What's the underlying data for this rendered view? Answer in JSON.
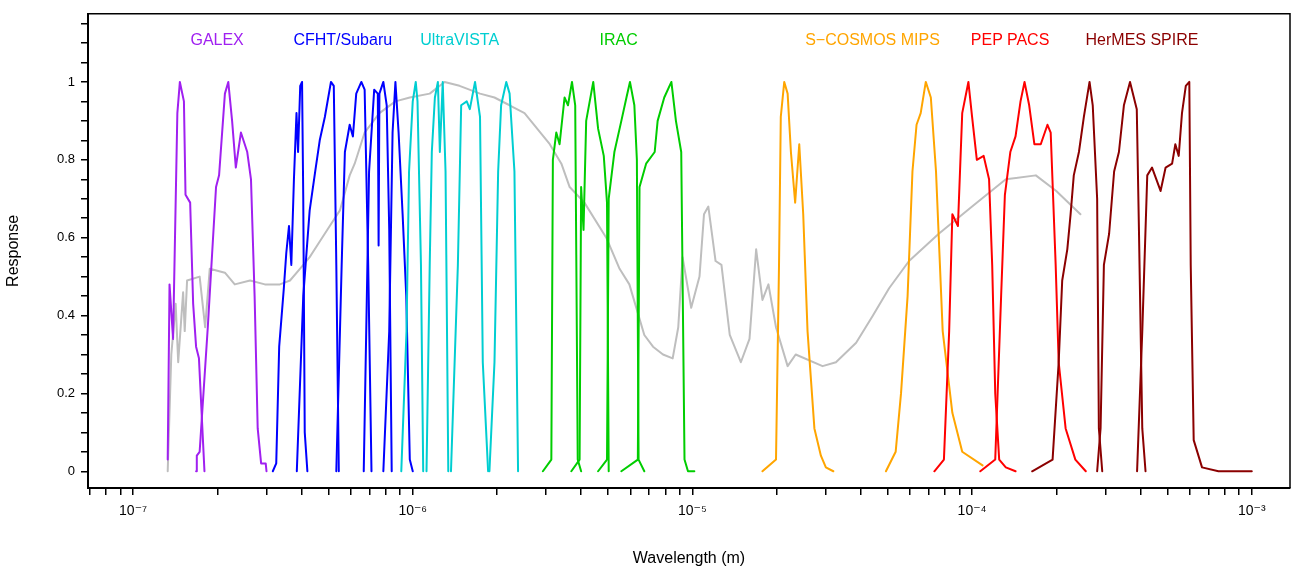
{
  "chart_data": {
    "type": "line",
    "xlabel": "Wavelength (m)",
    "ylabel": "Response",
    "log": "x",
    "grid": false,
    "xlim": [
      6.9e-08,
      0.00137
    ],
    "ylim": [
      -0.043,
      1.175
    ],
    "xticks": [
      {
        "value": 7e-08,
        "label": null
      },
      {
        "value": 8e-08,
        "label": null
      },
      {
        "value": 9e-08,
        "label": null
      },
      {
        "value": 1e-07,
        "label": "10⁻⁷"
      },
      {
        "value": 2e-07,
        "label": null
      },
      {
        "value": 3e-07,
        "label": null
      },
      {
        "value": 4e-07,
        "label": null
      },
      {
        "value": 5e-07,
        "label": null
      },
      {
        "value": 6e-07,
        "label": null
      },
      {
        "value": 7e-07,
        "label": null
      },
      {
        "value": 8e-07,
        "label": null
      },
      {
        "value": 9e-07,
        "label": null
      },
      {
        "value": 1e-06,
        "label": "10⁻⁶"
      },
      {
        "value": 2e-06,
        "label": null
      },
      {
        "value": 3e-06,
        "label": null
      },
      {
        "value": 4e-06,
        "label": null
      },
      {
        "value": 5e-06,
        "label": null
      },
      {
        "value": 6e-06,
        "label": null
      },
      {
        "value": 7e-06,
        "label": null
      },
      {
        "value": 8e-06,
        "label": null
      },
      {
        "value": 9e-06,
        "label": null
      },
      {
        "value": 1e-05,
        "label": "10⁻⁵"
      },
      {
        "value": 2e-05,
        "label": null
      },
      {
        "value": 3e-05,
        "label": null
      },
      {
        "value": 4e-05,
        "label": null
      },
      {
        "value": 5e-05,
        "label": null
      },
      {
        "value": 6e-05,
        "label": null
      },
      {
        "value": 7e-05,
        "label": null
      },
      {
        "value": 8e-05,
        "label": null
      },
      {
        "value": 9e-05,
        "label": null
      },
      {
        "value": 0.0001,
        "label": "10⁻⁴"
      },
      {
        "value": 0.0002,
        "label": null
      },
      {
        "value": 0.0003,
        "label": null
      },
      {
        "value": 0.0004,
        "label": null
      },
      {
        "value": 0.0005,
        "label": null
      },
      {
        "value": 0.0006,
        "label": null
      },
      {
        "value": 0.0007,
        "label": null
      },
      {
        "value": 0.0008,
        "label": null
      },
      {
        "value": 0.0009,
        "label": null
      },
      {
        "value": 0.001,
        "label": "10⁻³"
      }
    ],
    "yticks": [
      0,
      {
        "value": 0.05,
        "label": null
      },
      {
        "value": 0.1,
        "label": null
      },
      {
        "value": 0.15,
        "label": null
      },
      0.2,
      {
        "value": 0.25,
        "label": null
      },
      {
        "value": 0.3,
        "label": null
      },
      {
        "value": 0.35,
        "label": null
      },
      0.4,
      {
        "value": 0.45,
        "label": null
      },
      {
        "value": 0.5,
        "label": null
      },
      {
        "value": 0.55,
        "label": null
      },
      0.6,
      {
        "value": 0.65,
        "label": null
      },
      {
        "value": 0.7,
        "label": null
      },
      {
        "value": 0.75,
        "label": null
      },
      0.8,
      {
        "value": 0.85,
        "label": null
      },
      {
        "value": 0.9,
        "label": null
      },
      {
        "value": 0.95,
        "label": null
      },
      1,
      {
        "value": 1.05,
        "label": null
      },
      {
        "value": 1.1,
        "label": null
      },
      {
        "value": 1.15,
        "label": null
      }
    ],
    "series": [
      {
        "color": "#bebebe",
        "x": [
          1.33e-07,
          1.37e-07,
          1.42e-07,
          1.45e-07,
          1.51e-07,
          1.53e-07,
          1.56e-07,
          1.73e-07,
          1.81e-07,
          1.88e-07,
          2.13e-07,
          2.31e-07,
          2.62e-07,
          2.96e-07,
          3.35e-07,
          3.64e-07,
          3.95e-07,
          4.28e-07,
          4.65e-07,
          5.05e-07,
          5.49e-07,
          5.95e-07,
          6.2e-07,
          6.73e-07,
          7.6e-07,
          8.67e-07,
          9.76e-07,
          1.15e-06,
          1.3e-06,
          1.47e-06,
          1.74e-06,
          1.96e-06,
          2.22e-06,
          2.51e-06,
          3.09e-06,
          3.4e-06,
          3.64e-06,
          4.11e-06,
          4.92e-06,
          5.49e-06,
          5.95e-06,
          6.73e-06,
          7.23e-06,
          7.85e-06,
          8.5e-06,
          8.9e-06,
          9.22e-06,
          9.9e-06,
          1.06e-05,
          1.1e-05,
          1.14e-05,
          1.21e-05,
          1.27e-05,
          1.36e-05,
          1.49e-05,
          1.6e-05,
          1.69e-05,
          1.78e-05,
          1.87e-05,
          1.99e-05,
          2.19e-05,
          2.34e-05,
          2.92e-05,
          3.26e-05,
          3.85e-05,
          4.42e-05,
          5.05e-05,
          5.95e-05,
          7.6e-05,
          0.0001,
          0.000132,
          0.000169,
          0.0002,
          0.000244
        ],
        "values": [
          0,
          0.3,
          0.43,
          0.28,
          0.46,
          0.36,
          0.49,
          0.5,
          0.37,
          0.52,
          0.51,
          0.48,
          0.49,
          0.48,
          0.48,
          0.49,
          0.52,
          0.55,
          0.59,
          0.63,
          0.67,
          0.76,
          0.79,
          0.87,
          0.92,
          0.95,
          0.96,
          0.97,
          1.0,
          0.99,
          0.97,
          0.96,
          0.94,
          0.92,
          0.84,
          0.79,
          0.73,
          0.69,
          0.6,
          0.52,
          0.48,
          0.35,
          0.32,
          0.3,
          0.29,
          0.37,
          0.55,
          0.42,
          0.5,
          0.66,
          0.68,
          0.54,
          0.53,
          0.35,
          0.28,
          0.34,
          0.57,
          0.44,
          0.48,
          0.37,
          0.27,
          0.3,
          0.27,
          0.28,
          0.33,
          0.4,
          0.47,
          0.54,
          0.61,
          0.68,
          0.75,
          0.76,
          0.72,
          0.66
        ]
      },
      {
        "name": "GALEX",
        "color": "#a020f0",
        "x": [
          1.33e-07,
          1.35e-07,
          1.39e-07,
          1.44e-07,
          1.47e-07,
          1.52e-07,
          1.54e-07,
          1.6e-07,
          1.64e-07,
          1.68e-07,
          1.72e-07,
          1.8e-07
        ],
        "values": [
          0.03,
          0.48,
          0.34,
          0.92,
          1.0,
          0.95,
          0.71,
          0.69,
          0.43,
          0.32,
          0.29,
          0
        ]
      },
      {
        "color": "#a020f0",
        "x": [
          1.68e-07,
          1.69e-07,
          1.73e-07,
          1.85e-07,
          1.98e-07,
          2.03e-07,
          2.13e-07,
          2.19e-07,
          2.26e-07,
          2.33e-07,
          2.43e-07,
          2.56e-07,
          2.64e-07,
          2.72e-07,
          2.79e-07,
          2.87e-07,
          2.98e-07,
          3e-07
        ],
        "values": [
          0,
          0.04,
          0.05,
          0.37,
          0.73,
          0.76,
          0.97,
          1.0,
          0.9,
          0.78,
          0.87,
          0.82,
          0.75,
          0.45,
          0.11,
          0.02,
          0.02,
          0
        ]
      },
      {
        "name": "CFHT/Subaru",
        "color": "#0000ff",
        "x": [
          3.16e-07,
          3.25e-07,
          3.33e-07,
          3.46e-07,
          3.53e-07,
          3.61e-07,
          3.68e-07,
          3.76e-07,
          3.84e-07,
          3.89e-07,
          3.96e-07,
          4.02e-07,
          4.06e-07,
          4.11e-07,
          4.2e-07
        ],
        "values": [
          0,
          0.02,
          0.32,
          0.47,
          0.56,
          0.63,
          0.53,
          0.75,
          0.92,
          0.82,
          0.99,
          1.0,
          0.7,
          0.1,
          0
        ]
      },
      {
        "color": "#0000ff",
        "x": [
          3.85e-07,
          4.06e-07,
          4.28e-07,
          4.48e-07,
          4.65e-07,
          4.85e-07,
          5.1e-07,
          5.22e-07,
          5.33e-07,
          5.44e-07
        ],
        "values": [
          0,
          0.45,
          0.67,
          0.77,
          0.85,
          0.91,
          1.0,
          0.99,
          0.53,
          0
        ]
      },
      {
        "color": "#0000ff",
        "x": [
          5.33e-07,
          5.57e-07,
          5.72e-07,
          5.95e-07,
          6.11e-07,
          6.28e-07,
          6.55e-07,
          6.73e-07,
          6.93e-07,
          7.12e-07
        ],
        "values": [
          0,
          0.53,
          0.82,
          0.89,
          0.86,
          0.97,
          1.0,
          0.98,
          0.53,
          0
        ]
      },
      {
        "color": "#0000ff",
        "x": [
          6.68e-07,
          6.98e-07,
          7.28e-07,
          7.5e-07,
          7.55e-07,
          7.6e-07,
          7.85e-07,
          8.07e-07,
          8.24e-07,
          8.41e-07
        ],
        "values": [
          0,
          0.77,
          0.98,
          0.97,
          0.58,
          0.97,
          1.0,
          0.94,
          0.62,
          0
        ]
      },
      {
        "color": "#0000ff",
        "x": [
          7.85e-07,
          8.24e-07,
          8.47e-07,
          8.67e-07,
          8.9e-07,
          9.2e-07,
          9.48e-07,
          9.76e-07,
          1e-06
        ],
        "values": [
          0,
          0.36,
          0.87,
          1.0,
          0.87,
          0.66,
          0.45,
          0.03,
          0
        ]
      },
      {
        "name": "UltraVISTA",
        "color": "#00ced1",
        "x": [
          9.1e-07,
          9.5e-07,
          9.7e-07,
          1e-06,
          1.025e-06,
          1.04e-06,
          1.07e-06,
          1.09e-06
        ],
        "values": [
          0,
          0.36,
          0.77,
          0.95,
          1.0,
          0.95,
          0.53,
          0
        ]
      },
      {
        "color": "#00ced1",
        "x": [
          1.12e-06,
          1.15e-06,
          1.17e-06,
          1.2e-06,
          1.23e-06,
          1.25e-06,
          1.28e-06,
          1.31e-06,
          1.34e-06
        ],
        "values": [
          0,
          0.53,
          0.82,
          0.96,
          1.0,
          0.82,
          1.0,
          0.77,
          0
        ]
      },
      {
        "color": "#00ced1",
        "x": [
          1.37e-06,
          1.45e-06,
          1.49e-06,
          1.56e-06,
          1.6e-06,
          1.67e-06,
          1.74e-06,
          1.78e-06,
          1.86e-06
        ],
        "values": [
          0,
          0.53,
          0.94,
          0.95,
          0.93,
          1.0,
          0.91,
          0.28,
          0
        ]
      },
      {
        "color": "#00ced1",
        "x": [
          1.88e-06,
          1.96e-06,
          2.02e-06,
          2.07e-06,
          2.16e-06,
          2.22e-06,
          2.31e-06,
          2.38e-06
        ],
        "values": [
          0,
          0.28,
          0.77,
          0.94,
          1.0,
          0.97,
          0.77,
          0
        ]
      },
      {
        "name": "IRAC",
        "color": "#00cd00",
        "x": [
          2.92e-06,
          3.13e-06,
          3.17e-06,
          3.26e-06,
          3.35e-06,
          3.49e-06,
          3.59e-06,
          3.71e-06,
          3.81e-06,
          3.89e-06,
          4e-06
        ],
        "values": [
          0,
          0.03,
          0.8,
          0.87,
          0.84,
          0.96,
          0.94,
          1.0,
          0.94,
          0.03,
          0
        ]
      },
      {
        "color": "#00cd00",
        "x": [
          3.69e-06,
          3.95e-06,
          4e-06,
          4.08e-06,
          4.17e-06,
          4.42e-06,
          4.6e-06,
          4.82e-06,
          4.95e-06,
          5.02e-06
        ],
        "values": [
          0,
          0.03,
          0.73,
          0.62,
          0.9,
          1.0,
          0.88,
          0.81,
          0.69,
          0
        ]
      },
      {
        "color": "#00cd00",
        "x": [
          4.6e-06,
          4.95e-06,
          5.02e-06,
          5.26e-06,
          5.57e-06,
          5.81e-06,
          5.98e-06,
          6.2e-06,
          6.33e-06,
          6.42e-06,
          6.73e-06
        ],
        "values": [
          0,
          0.03,
          0.7,
          0.82,
          0.9,
          0.96,
          1.0,
          0.94,
          0.8,
          0.03,
          0
        ]
      },
      {
        "color": "#00cd00",
        "x": [
          5.57e-06,
          6.38e-06,
          6.47e-06,
          6.83e-06,
          7.33e-06,
          7.51e-06,
          7.93e-06,
          8.41e-06,
          8.73e-06,
          9.12e-06,
          9.37e-06,
          9.64e-06,
          1.016e-05
        ],
        "values": [
          0,
          0.03,
          0.73,
          0.79,
          0.82,
          0.9,
          0.96,
          1.0,
          0.9,
          0.82,
          0.03,
          0,
          0
        ]
      },
      {
        "name": "S−COSMOS MIPS",
        "color": "#ffa500",
        "x": [
          1.78e-05,
          1.99e-05,
          2.04e-05,
          2.07e-05,
          2.13e-05,
          2.19e-05,
          2.25e-05,
          2.33e-05,
          2.41e-05,
          2.49e-05,
          2.58e-05,
          2.73e-05,
          2.88e-05,
          3e-05,
          3.19e-05
        ],
        "values": [
          0,
          0.03,
          0.53,
          0.91,
          1.0,
          0.97,
          0.82,
          0.69,
          0.84,
          0.66,
          0.36,
          0.11,
          0.04,
          0.01,
          0
        ]
      },
      {
        "color": "#ffa500",
        "x": [
          4.92e-05,
          5.33e-05,
          5.57e-05,
          5.88e-05,
          6.12e-05,
          6.33e-05,
          6.55e-05,
          6.83e-05,
          7.12e-05,
          7.43e-05,
          7.85e-05,
          8.5e-05,
          9.22e-05,
          0.000109
        ],
        "values": [
          0,
          0.05,
          0.2,
          0.45,
          0.77,
          0.89,
          0.92,
          1.0,
          0.96,
          0.77,
          0.36,
          0.15,
          0.05,
          0.015
        ]
      },
      {
        "name": "PEP PACS",
        "color": "#ff0000",
        "x": [
          7.33e-05,
          7.93e-05,
          8.28e-05,
          8.5e-05,
          8.9e-05,
          9.22e-05,
          9.7e-05,
          0.0001,
          0.000104,
          0.00011,
          0.000115,
          0.000118,
          0.000121,
          0.000125,
          0.000132,
          0.000143
        ],
        "values": [
          0,
          0.03,
          0.36,
          0.66,
          0.63,
          0.92,
          1.0,
          0.91,
          0.8,
          0.81,
          0.75,
          0.53,
          0.2,
          0.03,
          0.01,
          0
        ]
      },
      {
        "color": "#ff0000",
        "x": [
          0.000107,
          0.000121,
          0.000127,
          0.000131,
          0.000137,
          0.000143,
          0.000149,
          0.000154,
          0.00016,
          0.000167,
          0.000176,
          0.000186,
          0.000191,
          0.000199,
          0.000204,
          0.000216,
          0.000234,
          0.000255
        ],
        "values": [
          0,
          0.03,
          0.45,
          0.71,
          0.82,
          0.86,
          0.95,
          1.0,
          0.94,
          0.84,
          0.84,
          0.89,
          0.87,
          0.53,
          0.28,
          0.11,
          0.03,
          0
        ]
      },
      {
        "name": "HerMES SPIRE",
        "color": "#8b0000",
        "x": [
          0.000164,
          0.000194,
          0.000204,
          0.00021,
          0.000219,
          0.000225,
          0.000231,
          0.000241,
          0.000251,
          0.000263,
          0.00027,
          0.00028,
          0.000284,
          0.000292
        ],
        "values": [
          0,
          0.03,
          0.28,
          0.49,
          0.57,
          0.66,
          0.76,
          0.82,
          0.91,
          1.0,
          0.94,
          0.7,
          0.11,
          0
        ]
      },
      {
        "color": "#8b0000",
        "x": [
          0.00028,
          0.000288,
          0.000296,
          0.000309,
          0.000322,
          0.000335,
          0.000349,
          0.000367,
          0.000388,
          0.000395,
          0.000406,
          0.000417
        ],
        "values": [
          0,
          0.11,
          0.53,
          0.61,
          0.77,
          0.82,
          0.94,
          1.0,
          0.93,
          0.62,
          0.11,
          0
        ]
      },
      {
        "color": "#8b0000",
        "x": [
          0.000389,
          0.000406,
          0.000423,
          0.00044,
          0.000472,
          0.000492,
          0.000519,
          0.000533,
          0.000548,
          0.000563,
          0.000581,
          0.000598,
          0.000605,
          0.00062,
          0.000664,
          0.00076,
          0.001
        ],
        "values": [
          0,
          0.36,
          0.76,
          0.78,
          0.72,
          0.78,
          0.79,
          0.84,
          0.81,
          0.92,
          0.99,
          1.0,
          0.53,
          0.08,
          0.01,
          0,
          0
        ]
      }
    ]
  }
}
